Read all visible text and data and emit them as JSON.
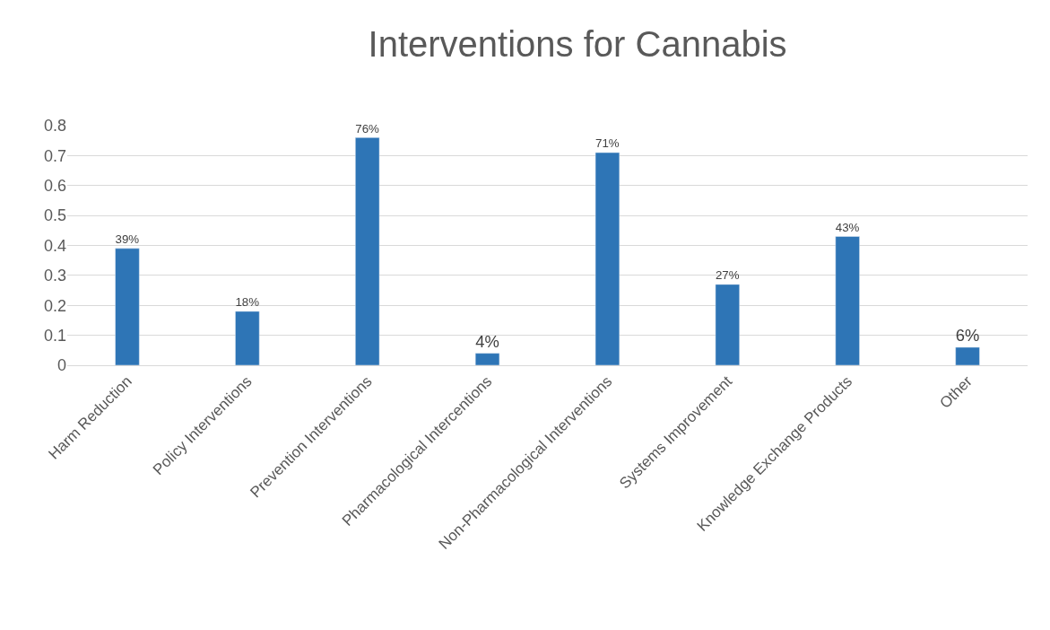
{
  "chart_data": {
    "type": "bar",
    "title": "Interventions for Cannabis",
    "categories": [
      "Harm Reduction",
      "Policy Interventions",
      "Prevention Interventions",
      "Pharmacological Intercentions",
      "Non-Pharmacological Interventions",
      "Systems Improvement",
      "Knowledge Exchange Products",
      "Other"
    ],
    "values": [
      0.39,
      0.18,
      0.76,
      0.04,
      0.71,
      0.27,
      0.43,
      0.06
    ],
    "value_labels": [
      "39%",
      "18%",
      "76%",
      "4%",
      "71%",
      "27%",
      "43%",
      "6%"
    ],
    "color": "#2e75b6",
    "ylim": [
      0,
      0.8
    ],
    "yticks": [
      0,
      0.1,
      0.2,
      0.3,
      0.4,
      0.5,
      0.6,
      0.7,
      0.8
    ],
    "grid": "y",
    "legend": false
  }
}
